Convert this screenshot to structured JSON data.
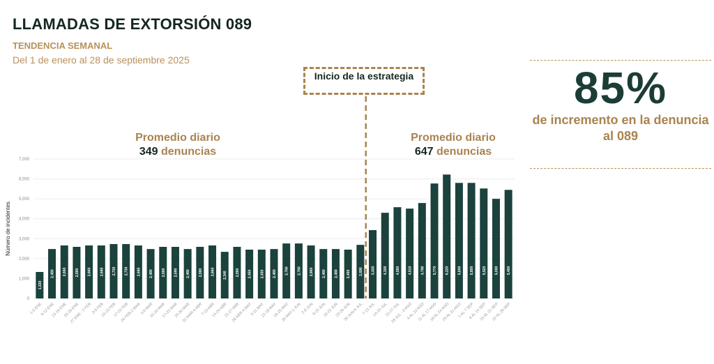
{
  "header": {
    "title": "LLAMADAS DE EXTORSIÓN 089",
    "subtitle": "TENDENCIA SEMANAL",
    "dates": "Del 1 de enero al 28 de septiembre 2025"
  },
  "annotation": {
    "strategy": "Inicio de la estrategia",
    "before_label": "Promedio diario",
    "before_num": "349",
    "before_unit": "denuncias",
    "after_label": "Promedio diario",
    "after_num": "647",
    "after_unit": "denuncias"
  },
  "kpi": {
    "value": "85%",
    "text": "de incremento en la denuncia al 089"
  },
  "colors": {
    "bar": "#1b423d",
    "accent": "#a9834f"
  },
  "chart_data": {
    "type": "bar",
    "ylabel": "Número de incidentes",
    "ylim": [
      0,
      7000
    ],
    "yticks": [
      "0",
      "1,000",
      "2,000",
      "3,000",
      "4,000",
      "5,000",
      "6,000",
      "7,000"
    ],
    "categories": [
      "1-5 ENE",
      "6-12 ENE",
      "13-19 ENE",
      "20-26 ENE",
      "27 ENE - 2 FEB",
      "3-9 FEB",
      "10-16 FEB",
      "17-23 FEB",
      "24 FEB-2 MAR",
      "3-9 MAR",
      "10-16 MAR",
      "17-23 MAR",
      "24-30 MAR",
      "31 MAR-6 ABR",
      "7-13 ABR",
      "14-20 ABR",
      "21-27 ABR",
      "28 ABR-4 MAY",
      "5-11 MAY",
      "12-18 MAY",
      "19-25 MAY",
      "26 MAY-1 JUN",
      "2-8 JUN",
      "9-15 JUN",
      "16-22 JUN",
      "23-29 JUN",
      "30 JUN-6 JUL",
      "7-13 JUL",
      "14-20 JUL",
      "21-27 JUL",
      "28 JUL - 3 AGO",
      "4 AL 10 AGO",
      "11 AL 17 AGO",
      "18 AL 24 AGO",
      "25 AL 31 AGO",
      "1 AL 7 SEP",
      "8 AL 14 SEP",
      "15 AL 21 SEP",
      "22 AL 28 SEP"
    ],
    "values": [
      1330,
      2480,
      2660,
      2590,
      2660,
      2660,
      2730,
      2730,
      2660,
      2480,
      2590,
      2590,
      2480,
      2590,
      2660,
      2340,
      2590,
      2450,
      2450,
      2480,
      2760,
      2760,
      2660,
      2480,
      2480,
      2450,
      2690,
      3430,
      4300,
      4580,
      4510,
      4790,
      5770,
      6220,
      5800,
      5800,
      5520,
      5000,
      5450
    ],
    "strategy_start_index": 27
  }
}
